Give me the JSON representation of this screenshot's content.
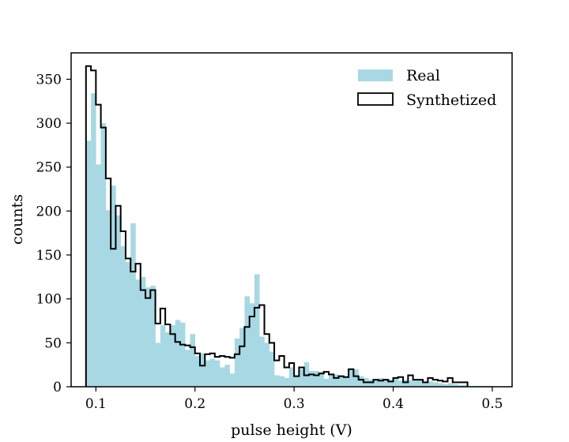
{
  "chart_data": {
    "type": "histogram",
    "xlabel": "pulse height (V)",
    "ylabel": "counts",
    "xlim": [
      0.075,
      0.52
    ],
    "ylim": [
      0,
      380
    ],
    "xticks": [
      0.1,
      0.2,
      0.3,
      0.4,
      0.5
    ],
    "xtick_labels": [
      "0.1",
      "0.2",
      "0.3",
      "0.4",
      "0.5"
    ],
    "yticks": [
      0,
      50,
      100,
      150,
      200,
      250,
      300,
      350
    ],
    "ytick_labels": [
      "0",
      "50",
      "100",
      "150",
      "200",
      "250",
      "300",
      "350"
    ],
    "bin_start": 0.09,
    "bin_width": 0.005,
    "legend": {
      "position": "top-right",
      "entries": [
        "Real",
        "Synthetized"
      ]
    },
    "series": [
      {
        "name": "Real",
        "style": "filled",
        "color": "#a8d8e3",
        "values": [
          280,
          334,
          253,
          300,
          201,
          229,
          195,
          160,
          142,
          186,
          122,
          125,
          113,
          115,
          50,
          70,
          62,
          70,
          76,
          73,
          42,
          60,
          35,
          38,
          30,
          32,
          30,
          22,
          25,
          15,
          55,
          67,
          103,
          95,
          128,
          57,
          50,
          40,
          13,
          12,
          10,
          22,
          12,
          20,
          28,
          18,
          18,
          17,
          9,
          14,
          14,
          12,
          12,
          20,
          20,
          12,
          10,
          8,
          8,
          10,
          9,
          8,
          11,
          7,
          8,
          7,
          7,
          8,
          5,
          6,
          5,
          4,
          3,
          4,
          3,
          2,
          2,
          1,
          1,
          1,
          1,
          1
        ]
      },
      {
        "name": "Synthetized",
        "style": "step",
        "color": "#000000",
        "values": [
          365,
          360,
          321,
          295,
          237,
          157,
          206,
          177,
          146,
          131,
          140,
          110,
          101,
          110,
          72,
          89,
          71,
          60,
          51,
          48,
          47,
          45,
          38,
          24,
          37,
          38,
          34,
          35,
          34,
          33,
          37,
          46,
          68,
          80,
          90,
          93,
          60,
          50,
          30,
          35,
          22,
          27,
          12,
          22,
          13,
          14,
          13,
          15,
          17,
          14,
          10,
          12,
          11,
          20,
          12,
          8,
          5,
          5,
          8,
          7,
          8,
          6,
          10,
          11,
          5,
          13,
          8,
          8,
          5,
          10,
          8,
          7,
          6,
          10,
          5,
          5,
          5
        ]
      }
    ]
  }
}
